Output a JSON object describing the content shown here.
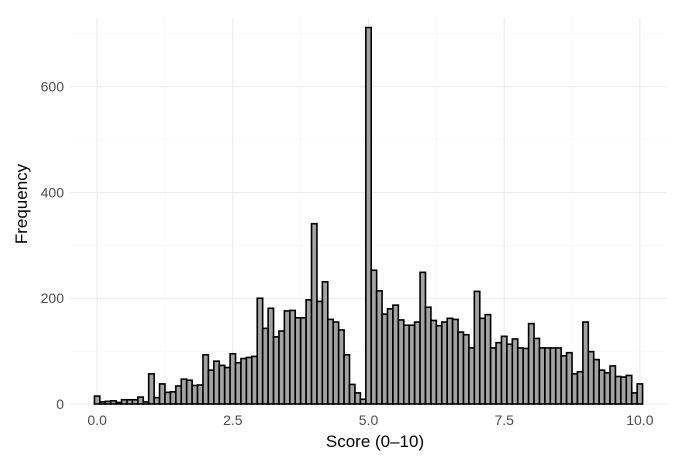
{
  "chart_data": {
    "type": "bar",
    "title": "",
    "xlabel": "Score (0–10)",
    "ylabel": "Frequency",
    "xlim": [
      -0.5,
      10.5
    ],
    "ylim": [
      0,
      730
    ],
    "x_ticks": [
      0,
      2.5,
      5,
      7.5,
      10
    ],
    "x_tick_labels": [
      "0.0",
      "2.5",
      "5.0",
      "7.5",
      "10.0"
    ],
    "y_ticks": [
      0,
      200,
      400,
      600
    ],
    "y_tick_labels": [
      "0",
      "200",
      "400",
      "600"
    ],
    "grid": true,
    "bar_fill": "#a3a3a3",
    "bar_stroke": "#000000",
    "bin_width": 0.1,
    "bin_centers": [
      0.0,
      0.1,
      0.2,
      0.3,
      0.4,
      0.5,
      0.6,
      0.7,
      0.8,
      0.9,
      1.0,
      1.1,
      1.2,
      1.3,
      1.4,
      1.5,
      1.6,
      1.7,
      1.8,
      1.9,
      2.0,
      2.1,
      2.2,
      2.3,
      2.4,
      2.5,
      2.6,
      2.7,
      2.8,
      2.9,
      3.0,
      3.1,
      3.2,
      3.3,
      3.4,
      3.5,
      3.6,
      3.7,
      3.8,
      3.9,
      4.0,
      4.1,
      4.2,
      4.3,
      4.4,
      4.5,
      4.6,
      4.7,
      4.8,
      4.9,
      5.0,
      5.1,
      5.2,
      5.3,
      5.4,
      5.5,
      5.6,
      5.7,
      5.8,
      5.9,
      6.0,
      6.1,
      6.2,
      6.3,
      6.4,
      6.5,
      6.6,
      6.7,
      6.8,
      6.9,
      7.0,
      7.1,
      7.2,
      7.3,
      7.4,
      7.5,
      7.6,
      7.7,
      7.8,
      7.9,
      8.0,
      8.1,
      8.2,
      8.3,
      8.4,
      8.5,
      8.6,
      8.7,
      8.8,
      8.9,
      9.0,
      9.1,
      9.2,
      9.3,
      9.4,
      9.5,
      9.6,
      9.7,
      9.8,
      9.9,
      10.0
    ],
    "values": [
      15,
      4,
      5,
      6,
      3,
      8,
      8,
      8,
      13,
      4,
      57,
      12,
      38,
      22,
      23,
      34,
      47,
      45,
      35,
      36,
      93,
      64,
      81,
      73,
      69,
      95,
      78,
      86,
      88,
      90,
      200,
      143,
      181,
      127,
      138,
      176,
      177,
      163,
      163,
      197,
      341,
      194,
      231,
      160,
      155,
      140,
      93,
      37,
      21,
      9,
      712,
      253,
      214,
      170,
      180,
      187,
      159,
      149,
      149,
      155,
      249,
      183,
      158,
      148,
      155,
      162,
      160,
      136,
      131,
      106,
      213,
      162,
      169,
      106,
      116,
      128,
      113,
      123,
      106,
      105,
      152,
      124,
      106,
      106,
      106,
      106,
      91,
      97,
      57,
      61,
      155,
      99,
      84,
      64,
      59,
      72,
      52,
      51,
      54,
      21,
      38
    ]
  }
}
